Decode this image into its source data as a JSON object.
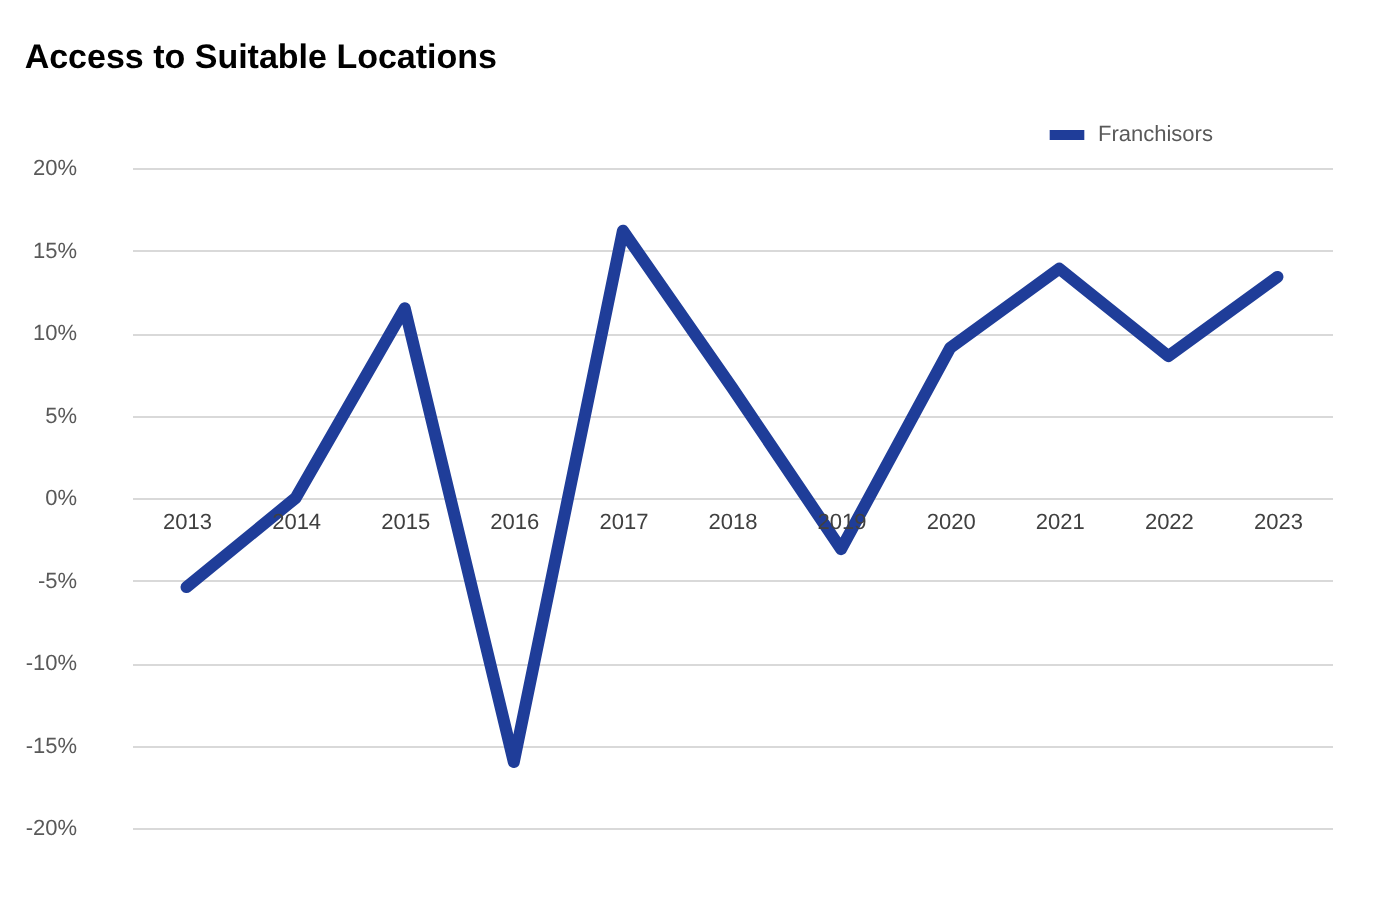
{
  "chart_data": {
    "type": "line",
    "title": "Access to Suitable Locations",
    "categories": [
      "2013",
      "2014",
      "2015",
      "2016",
      "2017",
      "2018",
      "2019",
      "2020",
      "2021",
      "2022",
      "2023"
    ],
    "series": [
      {
        "name": "Franchisors",
        "color": "#1f3d99",
        "values": [
          -5.4,
          0,
          11.5,
          -16,
          16.2,
          6.7,
          -3.1,
          9.1,
          13.9,
          8.6,
          13.4
        ]
      }
    ],
    "ylim": [
      -20,
      20
    ],
    "yticks": [
      {
        "value": -20,
        "label": "-20%"
      },
      {
        "value": -15,
        "label": "-15%"
      },
      {
        "value": -10,
        "label": "-10%"
      },
      {
        "value": -5,
        "label": "-5%"
      },
      {
        "value": 0,
        "label": "0%"
      },
      {
        "value": 5,
        "label": "5%"
      },
      {
        "value": 10,
        "label": "10%"
      },
      {
        "value": 15,
        "label": "15%"
      },
      {
        "value": 20,
        "label": "20%"
      }
    ],
    "grid": "y",
    "legend": "top right",
    "marker": "none",
    "line_style": "solid"
  }
}
